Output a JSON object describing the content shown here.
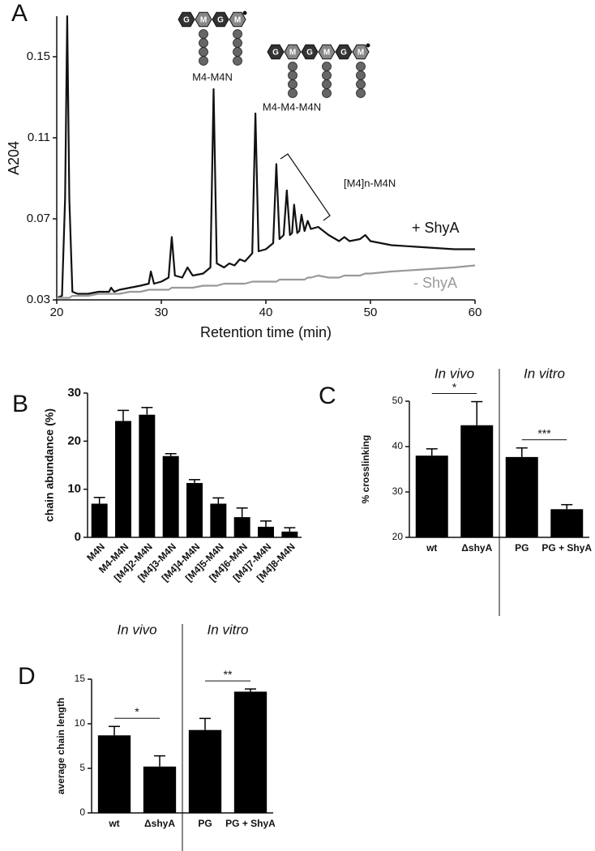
{
  "chart_data": [
    {
      "type": "line",
      "panel": "A",
      "xlabel": "Retention time (min)",
      "ylabel": "A204",
      "xlim": [
        20,
        60
      ],
      "ylim": [
        0.03,
        0.17
      ],
      "xticks": [
        20,
        30,
        40,
        50,
        60
      ],
      "yticks": [
        0.03,
        0.07,
        0.11,
        0.15
      ],
      "annotations": [
        "M4-M4N",
        "M4-M4-M4N",
        "[M4]n-M4N"
      ],
      "structures": [
        [
          "G",
          "M",
          "G",
          "M"
        ],
        [
          "G",
          "M",
          "G",
          "M",
          "G",
          "M"
        ]
      ],
      "x": [
        20,
        20.5,
        20.8,
        21,
        21.2,
        21.5,
        22,
        23,
        24,
        25,
        25.2,
        25.5,
        26,
        27,
        28,
        28.8,
        29,
        29.3,
        30,
        30.7,
        31,
        31.3,
        32,
        32.5,
        33,
        34,
        34.7,
        35,
        35.3,
        36,
        36.5,
        37,
        37.5,
        38,
        38.7,
        39,
        39.3,
        40,
        40.7,
        41,
        41.3,
        41.7,
        42,
        42.3,
        42.5,
        42.7,
        43,
        43.2,
        43.4,
        43.7,
        44,
        44.3,
        45,
        46,
        47,
        47.5,
        48,
        49,
        49.5,
        50,
        52,
        55,
        58,
        60
      ],
      "series": [
        {
          "name": "+ ShyA",
          "color": "#111111",
          "values": [
            0.031,
            0.032,
            0.08,
            0.17,
            0.08,
            0.034,
            0.033,
            0.033,
            0.034,
            0.034,
            0.036,
            0.034,
            0.035,
            0.036,
            0.037,
            0.038,
            0.044,
            0.038,
            0.039,
            0.041,
            0.061,
            0.042,
            0.041,
            0.046,
            0.042,
            0.043,
            0.046,
            0.134,
            0.048,
            0.046,
            0.048,
            0.047,
            0.05,
            0.049,
            0.053,
            0.122,
            0.054,
            0.055,
            0.058,
            0.097,
            0.06,
            0.062,
            0.084,
            0.062,
            0.063,
            0.077,
            0.063,
            0.064,
            0.072,
            0.064,
            0.069,
            0.065,
            0.066,
            0.062,
            0.059,
            0.061,
            0.059,
            0.06,
            0.062,
            0.059,
            0.057,
            0.056,
            0.055,
            0.055
          ]
        },
        {
          "name": "- ShyA",
          "color": "#999999",
          "values": [
            0.031,
            0.031,
            0.031,
            0.031,
            0.031,
            0.032,
            0.032,
            0.032,
            0.033,
            0.033,
            0.033,
            0.033,
            0.033,
            0.034,
            0.034,
            0.035,
            0.035,
            0.035,
            0.035,
            0.035,
            0.036,
            0.036,
            0.036,
            0.036,
            0.036,
            0.037,
            0.037,
            0.037,
            0.037,
            0.038,
            0.038,
            0.038,
            0.038,
            0.038,
            0.039,
            0.039,
            0.039,
            0.039,
            0.039,
            0.039,
            0.04,
            0.04,
            0.04,
            0.04,
            0.04,
            0.04,
            0.04,
            0.04,
            0.04,
            0.04,
            0.041,
            0.041,
            0.042,
            0.041,
            0.041,
            0.042,
            0.042,
            0.042,
            0.043,
            0.043,
            0.044,
            0.045,
            0.046,
            0.047
          ]
        }
      ]
    },
    {
      "type": "bar",
      "panel": "B",
      "ylabel": "chain abundance (%)",
      "color": "#000000",
      "categories": [
        "M4N",
        "M4-M4N",
        "[M4]2-M4N",
        "[M4]3-M4N",
        "[M4]4-M4N",
        "[M4]5-M4N",
        "[M4]6-M4N",
        "[M4]7-M4N",
        "[M4]8-M4N"
      ],
      "values": [
        7,
        24.2,
        25.5,
        16.9,
        11.3,
        7,
        4.2,
        2.2,
        1.2
      ],
      "errors": [
        1.3,
        2.2,
        1.5,
        0.5,
        0.7,
        1.2,
        1.9,
        1.2,
        0.8
      ],
      "ylim": [
        0,
        30
      ],
      "yticks": [
        0,
        10,
        20,
        30
      ]
    },
    {
      "type": "bar",
      "panel": "C",
      "ylabel": "% crosslinking",
      "color": "#000000",
      "categories": [
        "wt",
        "ΔshyA",
        "PG",
        "PG + ShyA"
      ],
      "values": [
        38,
        44.7,
        37.7,
        26.2
      ],
      "errors": [
        1.5,
        5.2,
        2,
        1
      ],
      "ylim": [
        20,
        50
      ],
      "yticks": [
        20,
        30,
        40,
        50
      ],
      "groups": [
        "In vivo",
        "In vitro"
      ],
      "significance": [
        "*",
        "***"
      ]
    },
    {
      "type": "bar",
      "panel": "D",
      "ylabel": "average chain length",
      "color": "#000000",
      "categories": [
        "wt",
        "ΔshyA",
        "PG",
        "PG + ShyA"
      ],
      "values": [
        8.7,
        5.2,
        9.3,
        13.6
      ],
      "errors": [
        1,
        1.2,
        1.3,
        0.3
      ],
      "ylim": [
        0,
        15
      ],
      "yticks": [
        0,
        5,
        10,
        15
      ],
      "groups": [
        "In vivo",
        "In vitro"
      ],
      "significance": [
        "*",
        "**"
      ]
    }
  ]
}
